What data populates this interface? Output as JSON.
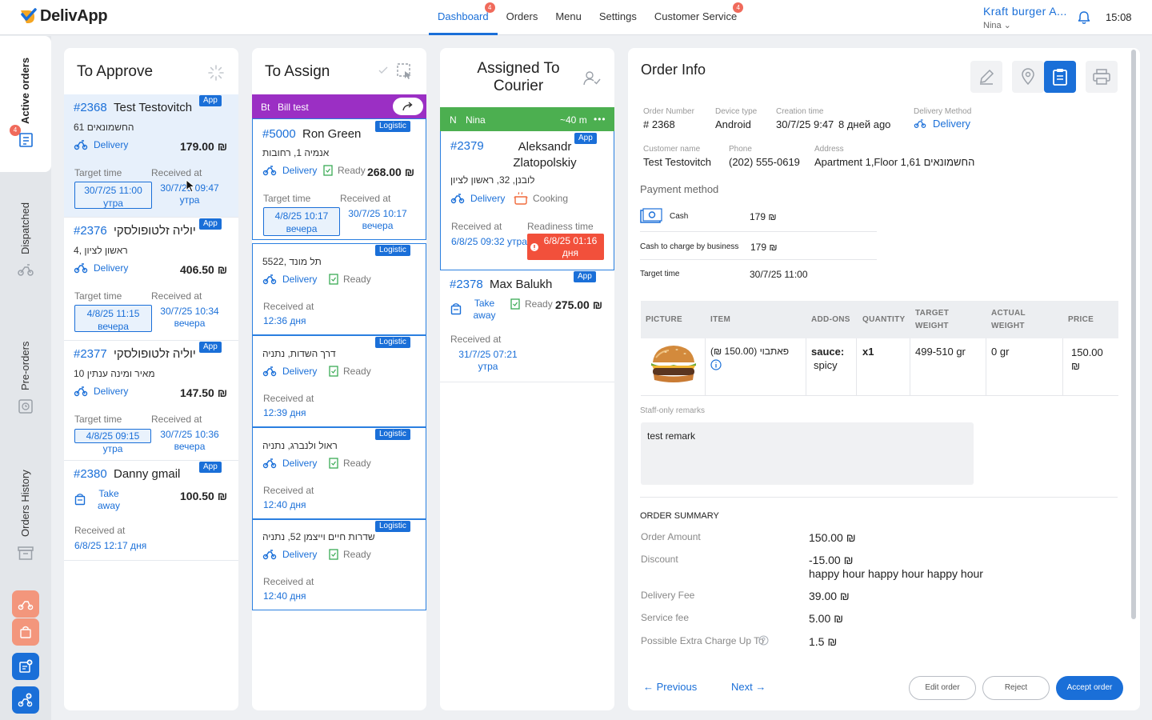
{
  "brand": {
    "name": "DelivApp"
  },
  "nav": [
    {
      "label": "Dashboard",
      "badge": "4"
    },
    {
      "label": "Orders"
    },
    {
      "label": "Menu"
    },
    {
      "label": "Settings"
    },
    {
      "label": "Customer Service",
      "badge": "4"
    }
  ],
  "header": {
    "restaurant": "Kraft burger A...",
    "user": "Nina ⌄",
    "time": "15:08"
  },
  "sidebar": {
    "tabs": [
      {
        "label": "Active orders",
        "badge": "4"
      },
      {
        "label": "Dispatched"
      },
      {
        "label": "Pre-orders"
      },
      {
        "label": "Orders History"
      }
    ]
  },
  "columns": {
    "approve": {
      "title": "To Approve",
      "orders": [
        {
          "num": "#2368",
          "name": "Test Testovitch",
          "badge": "App",
          "addr": "החשמונאים 61",
          "method": "Delivery",
          "price": "179.00 ₪",
          "target_label": "Target time",
          "target": "30/7/25 11:00 утра",
          "received_label": "Received at",
          "received": "30/7/25 09:47 утра"
        },
        {
          "num": "#2376",
          "name": "יוליה זלטופולסקי",
          "badge": "App",
          "addr": "ראשון לציון ,4",
          "method": "Delivery",
          "price": "406.50 ₪",
          "target_label": "Target time",
          "target": "4/8/25 11:15 вечера",
          "received_label": "Received at",
          "received": "30/7/25 10:34 вечера"
        },
        {
          "num": "#2377",
          "name": "יוליה זלטופולסקי",
          "badge": "App",
          "addr": "מאיר ומינה ענתין 10",
          "method": "Delivery",
          "price": "147.50 ₪",
          "target_label": "Target time",
          "target": "4/8/25 09:15 утра",
          "received_label": "Received at",
          "received": "30/7/25 10:36 вечера"
        },
        {
          "num": "#2380",
          "name": "Danny gmail",
          "badge": "App",
          "method": "Take away",
          "price": "100.50 ₪",
          "received_label": "Received at",
          "received": "6/8/25 12:17 дня"
        }
      ]
    },
    "assign": {
      "title": "To Assign",
      "group": {
        "initials": "Bt",
        "name": "Bill test"
      },
      "orders": [
        {
          "num": "#5000",
          "name": "Ron Green",
          "badge": "Logistic",
          "addr": "אנמיה 1, רחובות",
          "method": "Delivery",
          "status": "Ready",
          "price": "268.00 ₪",
          "target_label": "Target time",
          "target": "4/8/25 10:17 вечера",
          "received_label": "Received at",
          "received": "30/7/25 10:17 вечера"
        },
        {
          "addr": "5522, תל מונד",
          "badge": "Logistic",
          "method": "Delivery",
          "status": "Ready",
          "received_label": "Received at",
          "received": "12:36 дня"
        },
        {
          "addr": "דרך השדות, נתניה",
          "badge": "Logistic",
          "method": "Delivery",
          "status": "Ready",
          "received_label": "Received at",
          "received": "12:39 дня"
        },
        {
          "addr": "ראול ולנברג, נתניה",
          "badge": "Logistic",
          "method": "Delivery",
          "status": "Ready",
          "received_label": "Received at",
          "received": "12:40 дня"
        },
        {
          "addr": "שדרות חיים וייצמן 52, נתניה",
          "badge": "Logistic",
          "method": "Delivery",
          "status": "Ready",
          "received_label": "Received at",
          "received": "12:40 дня"
        }
      ]
    },
    "courier": {
      "title": "Assigned To Courier",
      "courier": {
        "initial": "N",
        "name": "Nina",
        "eta": "~40 m",
        "more": "•••"
      },
      "orders": [
        {
          "num": "#2379",
          "name": "Aleksandr Zlatopolskiy",
          "badge": "App",
          "addr": "לובנן, 32, ראשון לציון",
          "method": "Delivery",
          "status": "Cooking",
          "received_label": "Received at",
          "received": "6/8/25 09:32 утра",
          "readiness_label": "Readiness time",
          "readiness": "6/8/25 01:16 дня"
        },
        {
          "num": "#2378",
          "name": "Max Balukh",
          "badge": "App",
          "method": "Take away",
          "status": "Ready",
          "price": "275.00 ₪",
          "received_label": "Received at",
          "received": "31/7/25 07:21 утра"
        }
      ]
    }
  },
  "order_info": {
    "title": "Order Info",
    "fields": {
      "order_number": {
        "label": "Order Number",
        "value": "# 2368"
      },
      "device": {
        "label": "Device type",
        "value": "Android"
      },
      "created": {
        "label": "Creation time",
        "value": "30/7/25 9:47",
        "ago": "8 дней ago"
      },
      "method": {
        "label": "Delivery Method",
        "value": "Delivery"
      },
      "customer": {
        "label": "Customer name",
        "value": "Test Testovitch"
      },
      "phone": {
        "label": "Phone",
        "value": "(202) 555-0619"
      },
      "address": {
        "label": "Address",
        "value": "Apartment 1,Floor 1,61 החשמונאים"
      }
    },
    "payment": {
      "title": "Payment method",
      "method": "Cash",
      "amount": "179 ₪",
      "charge_label": "Cash to charge by business",
      "charge": "179 ₪",
      "target_label": "Target time",
      "target": "30/7/25 11:00"
    },
    "table": {
      "headers": [
        "PICTURE",
        "ITEM",
        "ADD-ONS",
        "QUANTITY",
        "TARGET WEIGHT",
        "ACTUAL WEIGHT",
        "PRICE"
      ],
      "row": {
        "item": "פאתבוי (150.00 ₪)",
        "addon_key": "sauce:",
        "addon_value": "spicy",
        "qty": "x1",
        "target_weight": "499-510 gr",
        "actual_weight": "0 gr",
        "price": "150.00 ₪"
      }
    },
    "remarks": {
      "label": "Staff-only remarks",
      "text": "test remark"
    },
    "summary": {
      "title": "ORDER SUMMARY",
      "rows": [
        {
          "label": "Order Amount",
          "value": "150.00 ₪"
        },
        {
          "label": "Discount",
          "value": "-15.00 ₪",
          "note": "happy hour happy hour happy hour"
        },
        {
          "label": "Delivery Fee",
          "value": "39.00 ₪"
        },
        {
          "label": "Service fee",
          "value": "5.00 ₪"
        },
        {
          "label": "Possible Extra Charge Up To",
          "value": "1.5 ₪"
        }
      ]
    },
    "footer": {
      "prev": "← Previous",
      "next": "Next →",
      "edit": "Edit order",
      "reject": "Reject",
      "accept": "Accept order"
    }
  }
}
